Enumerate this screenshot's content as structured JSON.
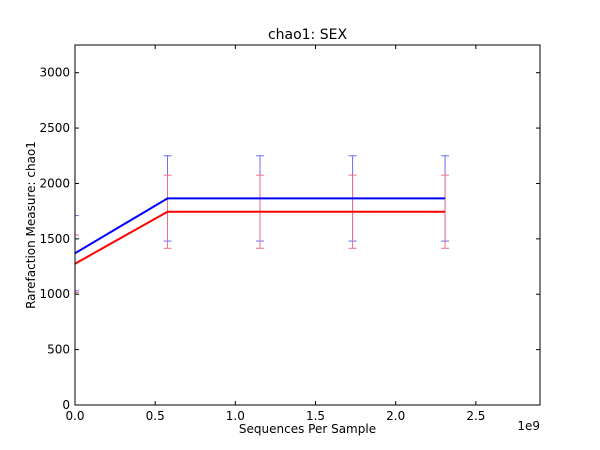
{
  "chart_data": {
    "type": "line",
    "title": "chao1: SEX",
    "xlabel": "Sequences Per Sample",
    "ylabel": "Rarefaction Measure: chao1",
    "x_offset_label": "1e9",
    "xlim": [
      0,
      2.9
    ],
    "ylim": [
      0,
      3250
    ],
    "grid": false,
    "x_ticks": [
      0.0,
      0.5,
      1.0,
      1.5,
      2.0,
      2.5
    ],
    "x_tick_labels": [
      "0.0",
      "0.5",
      "1.0",
      "1.5",
      "2.0",
      "2.5"
    ],
    "y_ticks": [
      0,
      500,
      1000,
      1500,
      2000,
      2500,
      3000
    ],
    "y_tick_labels": [
      "0",
      "500",
      "1000",
      "1500",
      "2000",
      "2500",
      "3000"
    ],
    "x": [
      0,
      0.577,
      1.154,
      1.731,
      2.308
    ],
    "series": [
      {
        "color": "#0000ff",
        "errorbar_color": "#6b6bff",
        "values": [
          1370,
          1865,
          1865,
          1865,
          1865
        ],
        "errors": [
          340,
          385,
          385,
          385,
          385
        ]
      },
      {
        "color": "#ff0000",
        "errorbar_color": "#f07080",
        "values": [
          1275,
          1745,
          1745,
          1745,
          1745
        ],
        "errors": [
          260,
          330,
          330,
          330,
          330
        ]
      }
    ]
  }
}
